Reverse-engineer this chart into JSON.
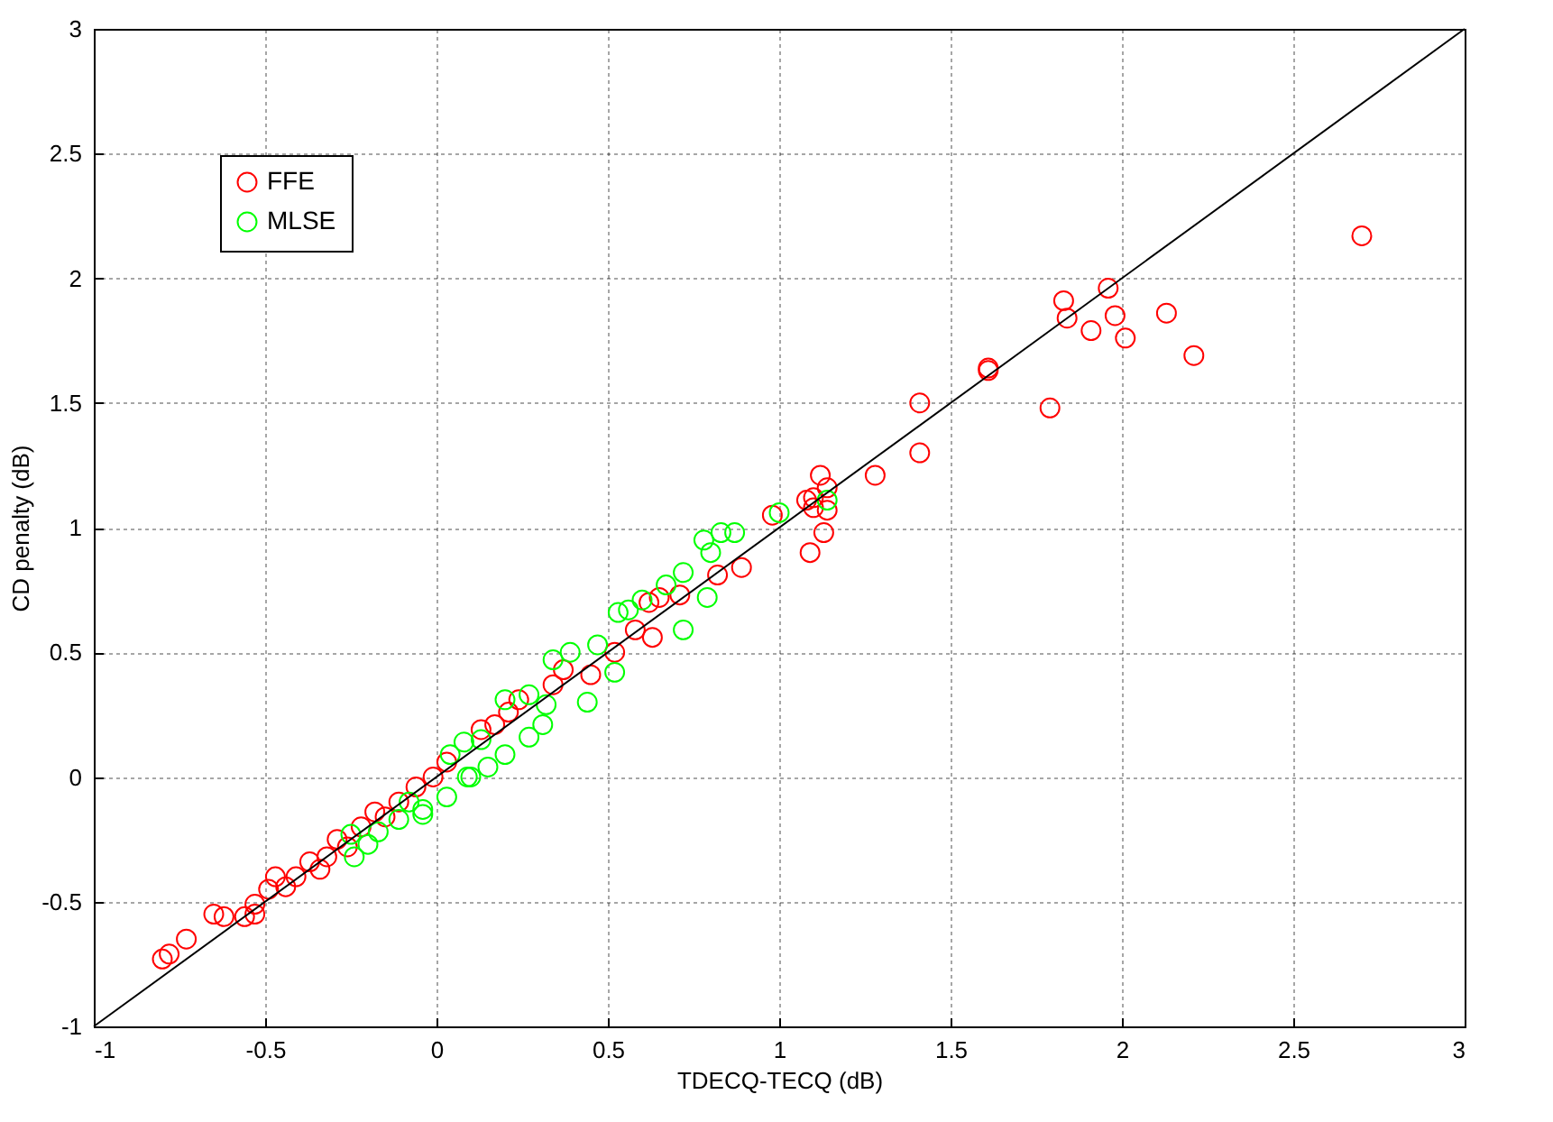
{
  "chart_data": {
    "type": "scatter",
    "xlabel": "TDECQ-TECQ (dB)",
    "ylabel": "CD penalty (dB)",
    "xlim": [
      -1,
      3
    ],
    "ylim": [
      -1,
      3
    ],
    "xticks": [
      -1,
      -0.5,
      0,
      0.5,
      1,
      1.5,
      2,
      2.5,
      3
    ],
    "yticks": [
      -1,
      -0.5,
      0,
      0.5,
      1,
      1.5,
      2,
      2.5,
      3
    ],
    "grid": true,
    "legend": "top left",
    "marker": "circle",
    "series": [
      {
        "name": "FFE",
        "color": "#ff0000",
        "x": [
          -0.8,
          -0.78,
          -0.73,
          -0.65,
          -0.62,
          -0.56,
          -0.53,
          -0.53,
          -0.49,
          -0.47,
          -0.44,
          -0.41,
          -0.37,
          -0.34,
          -0.32,
          -0.29,
          -0.26,
          -0.22,
          -0.18,
          -0.15,
          -0.11,
          -0.06,
          -0.01,
          0.03,
          0.13,
          0.17,
          0.21,
          0.24,
          0.34,
          0.37,
          0.45,
          0.52,
          0.58,
          0.63,
          0.62,
          0.65,
          0.71,
          0.82,
          0.89,
          0.98,
          1.09,
          1.13,
          1.08,
          1.1,
          1.12,
          1.14,
          1.14,
          1.1,
          1.28,
          1.41,
          1.41,
          1.61,
          1.61,
          1.79,
          1.83,
          1.84,
          1.91,
          1.96,
          1.98,
          2.01,
          2.13,
          2.21,
          2.7
        ],
        "values": [
          -0.73,
          -0.71,
          -0.65,
          -0.55,
          -0.56,
          -0.56,
          -0.55,
          -0.51,
          -0.45,
          -0.4,
          -0.44,
          -0.4,
          -0.34,
          -0.37,
          -0.32,
          -0.25,
          -0.28,
          -0.2,
          -0.14,
          -0.16,
          -0.1,
          -0.04,
          0,
          0.06,
          0.19,
          0.21,
          0.26,
          0.31,
          0.37,
          0.43,
          0.41,
          0.5,
          0.59,
          0.56,
          0.7,
          0.72,
          0.73,
          0.81,
          0.84,
          1.05,
          0.9,
          0.98,
          1.11,
          1.12,
          1.21,
          1.16,
          1.07,
          1.08,
          1.21,
          1.5,
          1.3,
          1.64,
          1.63,
          1.48,
          1.91,
          1.84,
          1.79,
          1.96,
          1.85,
          1.76,
          1.86,
          1.69,
          2.17
        ]
      },
      {
        "name": "MLSE",
        "color": "#00ff00",
        "x": [
          -0.25,
          -0.24,
          -0.2,
          -0.17,
          -0.11,
          -0.08,
          -0.04,
          -0.04,
          0.03,
          0.04,
          0.09,
          0.08,
          0.1,
          0.13,
          0.15,
          0.2,
          0.2,
          0.27,
          0.31,
          0.27,
          0.32,
          0.34,
          0.39,
          0.44,
          0.47,
          0.52,
          0.53,
          0.56,
          0.6,
          0.67,
          0.72,
          0.72,
          0.79,
          0.78,
          0.8,
          0.83,
          0.87,
          1.0,
          1.14
        ],
        "values": [
          -0.23,
          -0.32,
          -0.27,
          -0.22,
          -0.17,
          -0.1,
          -0.15,
          -0.13,
          -0.08,
          0.09,
          0,
          0.14,
          0,
          0.15,
          0.04,
          0.09,
          0.31,
          0.16,
          0.21,
          0.33,
          0.29,
          0.47,
          0.5,
          0.3,
          0.53,
          0.42,
          0.66,
          0.67,
          0.71,
          0.77,
          0.59,
          0.82,
          0.72,
          0.95,
          0.9,
          0.98,
          0.98,
          1.06,
          1.11
        ]
      },
      {
        "type": "line",
        "color": "#000000",
        "marker": "none",
        "x": [
          -1,
          3
        ],
        "values": [
          -1,
          3
        ]
      }
    ]
  }
}
